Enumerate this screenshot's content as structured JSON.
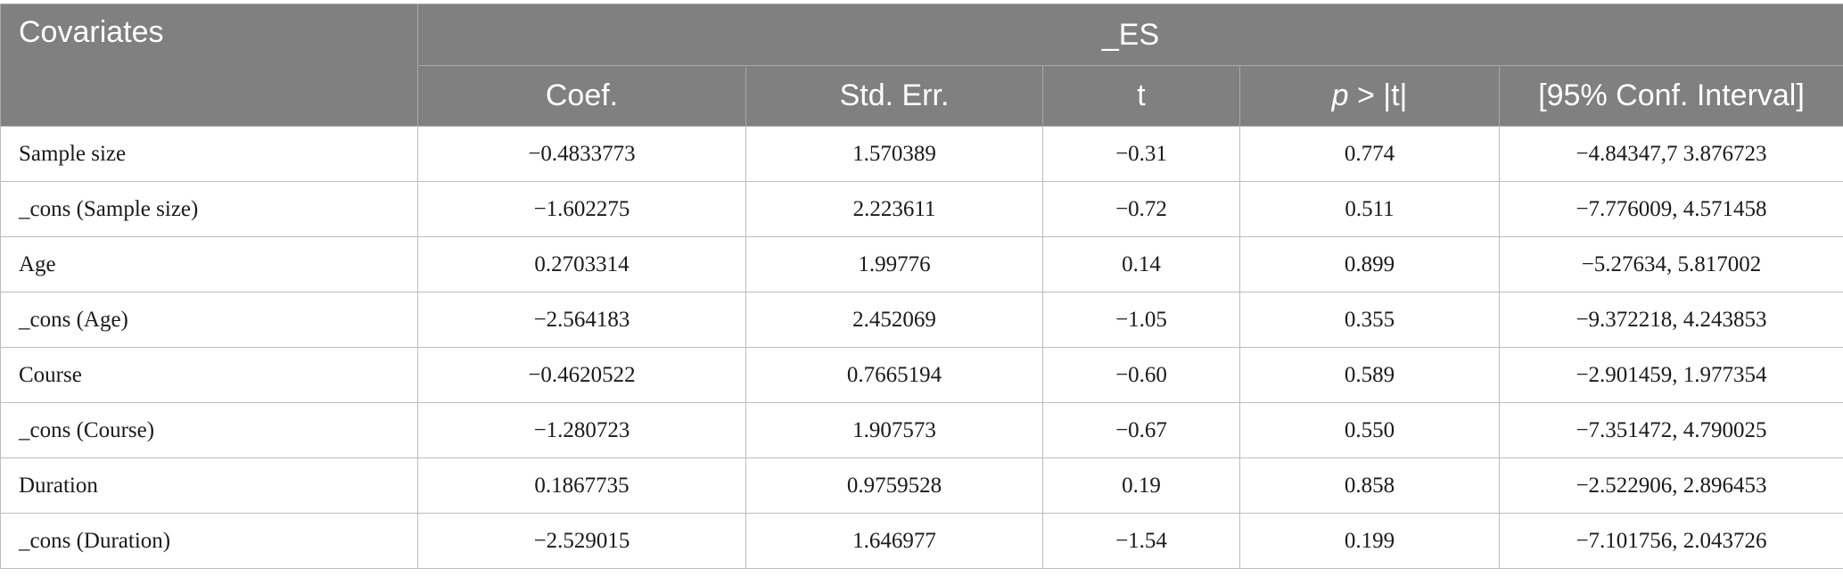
{
  "table": {
    "header": {
      "covariates": "Covariates",
      "group": "_ES",
      "columns": {
        "coef": "Coef.",
        "std_err": "Std. Err.",
        "t": "t",
        "p_italic": "p",
        "p_rest": " > |t|",
        "ci": "[95% Conf. Interval]"
      }
    },
    "rows": [
      {
        "label": "Sample size",
        "coef": "−0.4833773",
        "se": "1.570389",
        "t": "−0.31",
        "p": "0.774",
        "ci": "−4.84347,7 3.876723"
      },
      {
        "label": "_cons (Sample size)",
        "coef": "−1.602275",
        "se": "2.223611",
        "t": "−0.72",
        "p": "0.511",
        "ci": "−7.776009, 4.571458"
      },
      {
        "label": "Age",
        "coef": "0.2703314",
        "se": "1.99776",
        "t": "0.14",
        "p": "0.899",
        "ci": "−5.27634, 5.817002"
      },
      {
        "label": "_cons (Age)",
        "coef": "−2.564183",
        "se": "2.452069",
        "t": "−1.05",
        "p": "0.355",
        "ci": "−9.372218, 4.243853"
      },
      {
        "label": "Course",
        "coef": "−0.4620522",
        "se": "0.7665194",
        "t": "−0.60",
        "p": "0.589",
        "ci": "−2.901459, 1.977354"
      },
      {
        "label": "_cons (Course)",
        "coef": "−1.280723",
        "se": "1.907573",
        "t": "−0.67",
        "p": "0.550",
        "ci": "−7.351472, 4.790025"
      },
      {
        "label": "Duration",
        "coef": "0.1867735",
        "se": "0.9759528",
        "t": "0.19",
        "p": "0.858",
        "ci": "−2.522906, 2.896453"
      },
      {
        "label": "_cons (Duration)",
        "coef": "−2.529015",
        "se": "1.646977",
        "t": "−1.54",
        "p": "0.199",
        "ci": "−7.101756, 2.043726"
      }
    ]
  }
}
